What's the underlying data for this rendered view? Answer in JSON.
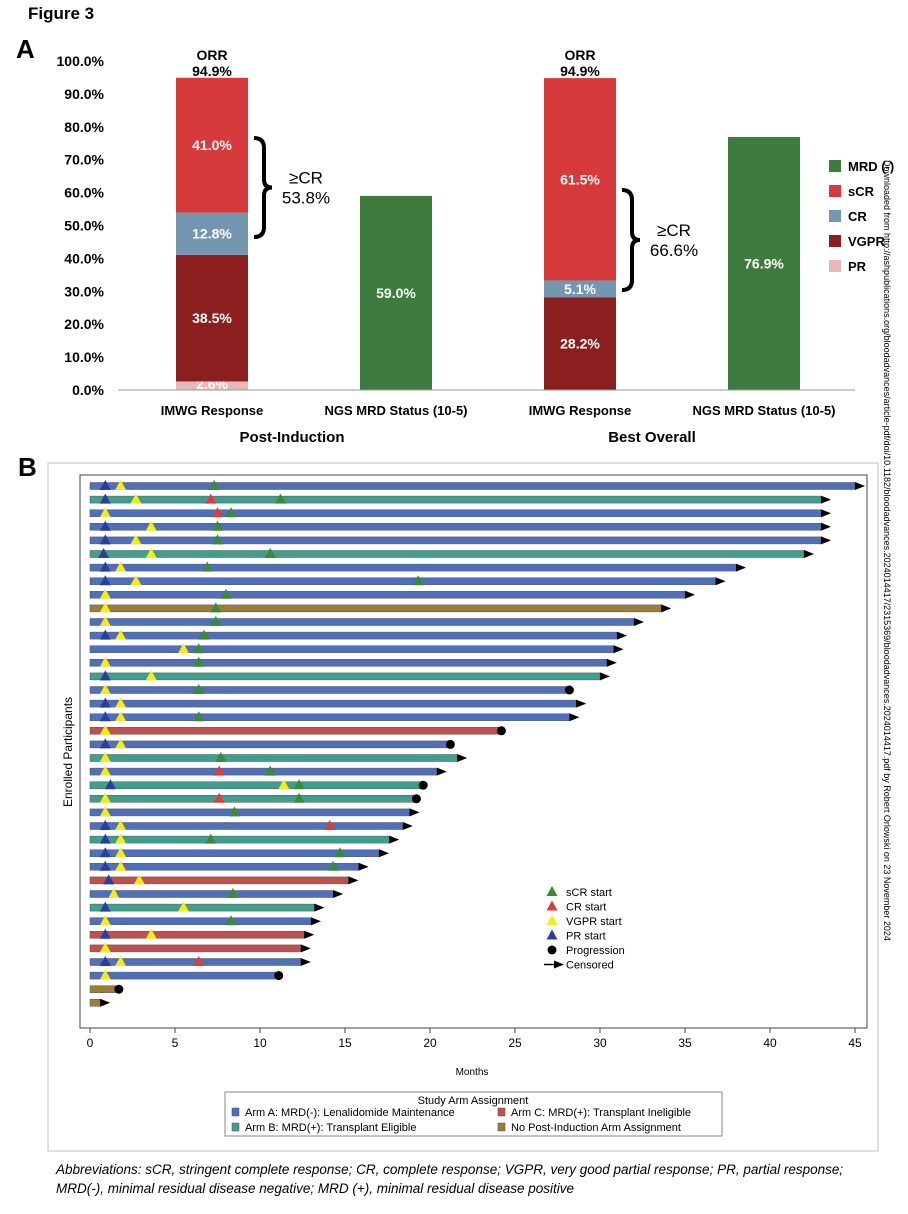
{
  "figure_title": "Figure 3",
  "panel_labels": {
    "a": "A",
    "b": "B"
  },
  "side_note": "Downloaded from http://ashpublications.org/bloodadvances/article-pdf/doi/10.1182/bloodadvances.2024014417/2315369/bloodadvances.2024014417.pdf by Robert Orlowski on 23 November 2024",
  "footnote": "Abbreviations: sCR, stringent complete response; CR, complete response; VGPR, very good partial response; PR, partial response; MRD(-), minimal residual disease negative; MRD (+), minimal residual disease positive",
  "colors": {
    "PR": "#e6b8b7",
    "VGPR": "#8b1e1e",
    "CR": "#7596b0",
    "sCR": "#d63a3a",
    "MRD(-)": "#3e7b3e",
    "armA": "#4f6fb8",
    "armB": "#3f9e8c",
    "armC": "#c0504d",
    "none": "#9c7c3c",
    "sCR_marker": "#3a8a3a",
    "CR_marker": "#e03a3a",
    "VGPR_marker": "#f5ea1e",
    "PR_marker": "#2a3ea0"
  },
  "chart_data": [
    {
      "type": "bar",
      "panel": "A",
      "ylim": [
        0,
        100
      ],
      "yticks": [
        "0.0%",
        "10.0%",
        "20.0%",
        "30.0%",
        "40.0%",
        "50.0%",
        "60.0%",
        "70.0%",
        "80.0%",
        "90.0%",
        "100.0%"
      ],
      "groups": [
        "Post-Induction",
        "Best Overall"
      ],
      "categories": [
        "IMWG Response",
        "NGS MRD Status (10-5)",
        "IMWG Response",
        "NGS MRD Status (10-5)"
      ],
      "series": [
        {
          "name": "PR",
          "values": [
            2.6,
            0,
            0,
            0
          ],
          "labels": [
            "2.6%",
            "",
            "",
            ""
          ]
        },
        {
          "name": "VGPR",
          "values": [
            38.5,
            0,
            28.2,
            0
          ],
          "labels": [
            "38.5%",
            "",
            "28.2%",
            ""
          ]
        },
        {
          "name": "CR",
          "values": [
            12.8,
            0,
            5.1,
            0
          ],
          "labels": [
            "12.8%",
            "",
            "5.1%",
            ""
          ]
        },
        {
          "name": "sCR",
          "values": [
            41.0,
            0,
            61.5,
            0
          ],
          "labels": [
            "41.0%",
            "",
            "61.5%",
            ""
          ]
        },
        {
          "name": "MRD (-)",
          "values": [
            0,
            59.0,
            0,
            76.9
          ],
          "labels": [
            "",
            "59.0%",
            "",
            "76.9%"
          ]
        }
      ],
      "orr": [
        {
          "label": "ORR",
          "value": "94.9%"
        },
        {
          "label": "ORR",
          "value": "94.9%"
        }
      ],
      "brackets": [
        {
          "label": "≥CR",
          "value": "53.8%",
          "from": 41.1,
          "to": 94.9
        },
        {
          "label": "≥CR",
          "value": "66.6%",
          "from": 28.2,
          "to": 94.8
        }
      ],
      "legend": [
        "MRD (-)",
        "sCR",
        "CR",
        "VGPR",
        "PR"
      ],
      "legend_position": "right"
    },
    {
      "type": "swimmer",
      "panel": "B",
      "xlabel": "Months",
      "ylabel": "Enrolled Participants",
      "xlim": [
        0,
        46
      ],
      "xticks": [
        0,
        5,
        10,
        15,
        20,
        25,
        30,
        35,
        40,
        45
      ],
      "event_legend": [
        "sCR start",
        "CR start",
        "VGPR start",
        "PR start",
        "Progression",
        "Censored"
      ],
      "arm_legend_title": "Study Arm Assignment",
      "arm_legend": [
        {
          "key": "A",
          "label": "Arm A: MRD(-): Lenalidomide Maintenance"
        },
        {
          "key": "C",
          "label": "Arm C: MRD(+): Transplant Ineligible"
        },
        {
          "key": "B",
          "label": "Arm B: MRD(+): Transplant Eligible"
        },
        {
          "key": "N",
          "label": "No Post-Induction Arm Assignment"
        }
      ],
      "participants": [
        {
          "arm": "A",
          "end": 45.0,
          "outcome": "censored",
          "events": [
            [
              "PR",
              0.9
            ],
            [
              "VGPR",
              1.8
            ],
            [
              "sCR",
              7.3
            ]
          ]
        },
        {
          "arm": "B",
          "end": 43.0,
          "outcome": "censored",
          "events": [
            [
              "PR",
              0.9
            ],
            [
              "VGPR",
              2.7
            ],
            [
              "CR",
              7.1
            ],
            [
              "sCR",
              11.2
            ]
          ]
        },
        {
          "arm": "A",
          "end": 43.0,
          "outcome": "censored",
          "events": [
            [
              "VGPR",
              0.9
            ],
            [
              "CR",
              7.5
            ],
            [
              "sCR",
              8.3
            ]
          ]
        },
        {
          "arm": "A",
          "end": 43.0,
          "outcome": "censored",
          "events": [
            [
              "PR",
              0.9
            ],
            [
              "VGPR",
              3.6
            ],
            [
              "sCR",
              7.5
            ]
          ]
        },
        {
          "arm": "A",
          "end": 43.0,
          "outcome": "censored",
          "events": [
            [
              "PR",
              0.9
            ],
            [
              "VGPR",
              2.7
            ],
            [
              "sCR",
              7.5
            ]
          ]
        },
        {
          "arm": "B",
          "end": 42.0,
          "outcome": "censored",
          "events": [
            [
              "PR",
              0.8
            ],
            [
              "VGPR",
              3.6
            ],
            [
              "sCR",
              10.6
            ]
          ]
        },
        {
          "arm": "A",
          "end": 38.0,
          "outcome": "censored",
          "events": [
            [
              "PR",
              0.9
            ],
            [
              "VGPR",
              1.8
            ],
            [
              "sCR",
              6.9
            ]
          ]
        },
        {
          "arm": "A",
          "end": 36.8,
          "outcome": "censored",
          "events": [
            [
              "PR",
              0.9
            ],
            [
              "VGPR",
              2.7
            ],
            [
              "sCR",
              19.3
            ]
          ]
        },
        {
          "arm": "A",
          "end": 35.0,
          "outcome": "censored",
          "events": [
            [
              "VGPR",
              0.9
            ],
            [
              "sCR",
              8.0
            ]
          ]
        },
        {
          "arm": "N",
          "end": 33.6,
          "outcome": "censored",
          "events": [
            [
              "VGPR",
              0.9
            ],
            [
              "sCR",
              7.4
            ]
          ]
        },
        {
          "arm": "A",
          "end": 32.0,
          "outcome": "censored",
          "events": [
            [
              "VGPR",
              0.9
            ],
            [
              "sCR",
              7.4
            ]
          ]
        },
        {
          "arm": "A",
          "end": 31.0,
          "outcome": "censored",
          "events": [
            [
              "PR",
              0.9
            ],
            [
              "VGPR",
              1.8
            ],
            [
              "sCR",
              6.7
            ]
          ]
        },
        {
          "arm": "A",
          "end": 30.8,
          "outcome": "censored",
          "events": [
            [
              "VGPR",
              5.5
            ],
            [
              "sCR",
              6.4
            ]
          ]
        },
        {
          "arm": "A",
          "end": 30.4,
          "outcome": "censored",
          "events": [
            [
              "VGPR",
              0.9
            ],
            [
              "sCR",
              6.4
            ]
          ]
        },
        {
          "arm": "B",
          "end": 30.0,
          "outcome": "censored",
          "events": [
            [
              "PR",
              0.9
            ],
            [
              "VGPR",
              3.6
            ]
          ]
        },
        {
          "arm": "A",
          "end": 28.2,
          "outcome": "progression",
          "events": [
            [
              "VGPR",
              0.9
            ],
            [
              "sCR",
              6.4
            ]
          ]
        },
        {
          "arm": "A",
          "end": 28.6,
          "outcome": "censored",
          "events": [
            [
              "PR",
              0.9
            ],
            [
              "VGPR",
              1.8
            ]
          ]
        },
        {
          "arm": "A",
          "end": 28.2,
          "outcome": "censored",
          "events": [
            [
              "PR",
              0.9
            ],
            [
              "VGPR",
              1.8
            ],
            [
              "sCR",
              6.4
            ]
          ]
        },
        {
          "arm": "C",
          "end": 24.2,
          "outcome": "progression",
          "events": [
            [
              "VGPR",
              0.9
            ]
          ]
        },
        {
          "arm": "A",
          "end": 21.2,
          "outcome": "progression",
          "events": [
            [
              "PR",
              0.9
            ],
            [
              "VGPR",
              1.8
            ]
          ]
        },
        {
          "arm": "B",
          "end": 21.6,
          "outcome": "censored",
          "events": [
            [
              "VGPR",
              0.9
            ],
            [
              "sCR",
              7.7
            ]
          ]
        },
        {
          "arm": "A",
          "end": 20.4,
          "outcome": "censored",
          "events": [
            [
              "VGPR",
              0.9
            ],
            [
              "CR",
              7.6
            ],
            [
              "sCR",
              10.6
            ]
          ]
        },
        {
          "arm": "B",
          "end": 19.6,
          "outcome": "progression",
          "events": [
            [
              "PR",
              1.2
            ],
            [
              "VGPR",
              11.4
            ],
            [
              "sCR",
              12.3
            ]
          ]
        },
        {
          "arm": "B",
          "end": 19.2,
          "outcome": "progression",
          "events": [
            [
              "VGPR",
              0.9
            ],
            [
              "CR",
              7.6
            ],
            [
              "sCR",
              12.3
            ]
          ]
        },
        {
          "arm": "A",
          "end": 18.8,
          "outcome": "censored",
          "events": [
            [
              "VGPR",
              0.9
            ],
            [
              "sCR",
              8.5
            ]
          ]
        },
        {
          "arm": "A",
          "end": 18.4,
          "outcome": "censored",
          "events": [
            [
              "PR",
              0.9
            ],
            [
              "VGPR",
              1.8
            ],
            [
              "CR",
              14.1
            ]
          ]
        },
        {
          "arm": "B",
          "end": 17.6,
          "outcome": "censored",
          "events": [
            [
              "PR",
              0.9
            ],
            [
              "VGPR",
              1.8
            ],
            [
              "sCR",
              7.1
            ]
          ]
        },
        {
          "arm": "A",
          "end": 17.0,
          "outcome": "censored",
          "events": [
            [
              "PR",
              0.9
            ],
            [
              "VGPR",
              1.8
            ],
            [
              "sCR",
              14.7
            ]
          ]
        },
        {
          "arm": "A",
          "end": 15.8,
          "outcome": "censored",
          "events": [
            [
              "PR",
              0.9
            ],
            [
              "VGPR",
              1.8
            ],
            [
              "sCR",
              14.3
            ]
          ]
        },
        {
          "arm": "C",
          "end": 15.2,
          "outcome": "censored",
          "events": [
            [
              "PR",
              1.1
            ],
            [
              "VGPR",
              2.9
            ]
          ]
        },
        {
          "arm": "A",
          "end": 14.3,
          "outcome": "censored",
          "events": [
            [
              "VGPR",
              1.4
            ],
            [
              "sCR",
              8.4
            ]
          ]
        },
        {
          "arm": "B",
          "end": 13.2,
          "outcome": "censored",
          "events": [
            [
              "PR",
              0.9
            ],
            [
              "VGPR",
              5.5
            ]
          ]
        },
        {
          "arm": "A",
          "end": 13.0,
          "outcome": "censored",
          "events": [
            [
              "VGPR",
              0.9
            ],
            [
              "sCR",
              8.3
            ]
          ]
        },
        {
          "arm": "C",
          "end": 12.6,
          "outcome": "censored",
          "events": [
            [
              "PR",
              0.9
            ],
            [
              "VGPR",
              3.6
            ]
          ]
        },
        {
          "arm": "C",
          "end": 12.4,
          "outcome": "censored",
          "events": [
            [
              "VGPR",
              0.9
            ]
          ]
        },
        {
          "arm": "A",
          "end": 12.4,
          "outcome": "censored",
          "events": [
            [
              "PR",
              0.9
            ],
            [
              "VGPR",
              1.8
            ],
            [
              "CR",
              6.4
            ]
          ]
        },
        {
          "arm": "A",
          "end": 11.1,
          "outcome": "progression",
          "events": [
            [
              "VGPR",
              0.9
            ]
          ]
        },
        {
          "arm": "N",
          "end": 1.7,
          "outcome": "progression",
          "events": []
        },
        {
          "arm": "N",
          "end": 0.6,
          "outcome": "censored",
          "events": []
        }
      ]
    }
  ]
}
